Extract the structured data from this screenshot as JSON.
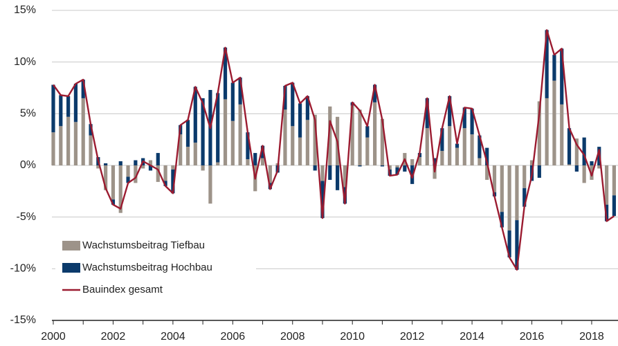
{
  "chart_data": {
    "type": "bar-line",
    "x": [
      2000,
      2000.25,
      2000.5,
      2000.75,
      2001,
      2001.25,
      2001.5,
      2001.75,
      2002,
      2002.25,
      2002.5,
      2002.75,
      2003,
      2003.25,
      2003.5,
      2003.75,
      2004,
      2004.25,
      2004.5,
      2004.75,
      2005,
      2005.25,
      2005.5,
      2005.75,
      2006,
      2006.25,
      2006.5,
      2006.75,
      2007,
      2007.25,
      2007.5,
      2007.75,
      2008,
      2008.25,
      2008.5,
      2008.75,
      2009,
      2009.25,
      2009.5,
      2009.75,
      2010,
      2010.25,
      2010.5,
      2010.75,
      2011,
      2011.25,
      2011.5,
      2011.75,
      2012,
      2012.25,
      2012.5,
      2012.75,
      2013,
      2013.25,
      2013.5,
      2013.75,
      2014,
      2014.25,
      2014.5,
      2014.75,
      2015,
      2015.25,
      2015.5,
      2015.75,
      2016,
      2016.25,
      2016.5,
      2016.75,
      2017,
      2017.25,
      2017.5,
      2017.75,
      2018,
      2018.25,
      2018.5,
      2018.75
    ],
    "series": [
      {
        "name": "Wachstumsbeitrag Tiefbau",
        "kind": "bar",
        "color": "#9d9389",
        "values": [
          3.2,
          3.8,
          4.7,
          4.2,
          6.5,
          2.9,
          -0.3,
          -2.4,
          -3.3,
          -4.6,
          -1.1,
          -1.7,
          -0.3,
          0.5,
          -1.6,
          -1.5,
          -0.4,
          3.0,
          1.8,
          2.2,
          -0.5,
          -3.7,
          0.3,
          6.4,
          4.3,
          5.9,
          0.6,
          -2.5,
          0.7,
          -1.7,
          0.2,
          5.4,
          3.8,
          2.7,
          4.4,
          4.9,
          -1.5,
          5.7,
          4.7,
          -2.1,
          5.8,
          5.4,
          2.7,
          6.1,
          4.5,
          -0.4,
          -0.2,
          1.2,
          0.6,
          0.8,
          3.6,
          -1.3,
          1.4,
          3.8,
          1.7,
          3.6,
          3.0,
          0.7,
          -1.4,
          -2.6,
          -4.5,
          -6.3,
          -5.3,
          -2.2,
          0.5,
          6.2,
          6.5,
          8.2,
          5.9,
          0.1,
          2.6,
          -1.7,
          -1.4,
          -0.3,
          -3.8,
          -2.9
        ]
      },
      {
        "name": "Wachstumsbeitrag Hochbau",
        "kind": "bar",
        "color": "#0b3a6b",
        "values": [
          4.6,
          3.0,
          2.0,
          3.7,
          1.8,
          1.1,
          0.8,
          0.2,
          -0.5,
          0.4,
          -0.6,
          0.5,
          0.7,
          -0.5,
          1.2,
          -0.5,
          -2.3,
          0.9,
          2.6,
          5.4,
          6.5,
          7.3,
          6.7,
          5.0,
          3.7,
          2.6,
          2.6,
          1.2,
          1.2,
          -0.6,
          -0.7,
          2.3,
          4.2,
          3.3,
          2.3,
          -0.5,
          -3.6,
          -1.4,
          -2.4,
          -1.6,
          0.3,
          -0.1,
          1.1,
          1.7,
          -0.1,
          -0.6,
          -0.7,
          -0.6,
          -1.8,
          0.4,
          2.9,
          0.7,
          2.2,
          2.9,
          0.4,
          2.0,
          2.5,
          2.2,
          1.7,
          -0.4,
          -1.5,
          -2.6,
          -4.8,
          -1.8,
          -1.5,
          -1.2,
          6.6,
          2.5,
          5.4,
          3.5,
          -0.6,
          2.7,
          0.4,
          1.8,
          -1.6,
          -2.0
        ]
      },
      {
        "name": "Bauindex gesamt",
        "kind": "line",
        "color": "#9b1b30",
        "values": [
          7.8,
          6.8,
          6.7,
          7.9,
          8.3,
          4.0,
          0.5,
          -2.2,
          -3.8,
          -4.2,
          -1.7,
          -1.2,
          0.4,
          0.0,
          -0.4,
          -2.0,
          -2.7,
          3.9,
          4.4,
          7.6,
          6.0,
          3.6,
          7.0,
          11.4,
          8.0,
          8.5,
          3.2,
          -1.3,
          1.9,
          -2.3,
          -0.5,
          7.7,
          8.0,
          6.0,
          6.7,
          4.4,
          -5.1,
          4.3,
          2.3,
          -3.7,
          6.1,
          5.3,
          3.8,
          7.8,
          4.4,
          -1.0,
          -0.9,
          0.6,
          -1.2,
          1.2,
          6.5,
          -0.6,
          3.6,
          6.7,
          2.1,
          5.6,
          5.5,
          2.9,
          0.3,
          -3.0,
          -6.0,
          -8.9,
          -10.1,
          -4.0,
          -1.0,
          5.0,
          13.1,
          10.7,
          11.3,
          3.6,
          2.0,
          1.0,
          -1.0,
          1.5,
          -5.4,
          -4.9
        ]
      }
    ],
    "xlim": [
      2000,
      2018.88
    ],
    "xticks": [
      2000,
      2002,
      2004,
      2006,
      2008,
      2010,
      2012,
      2014,
      2016,
      2018
    ],
    "xminor_ticks": [
      2001,
      2003,
      2005,
      2007,
      2009,
      2011,
      2013,
      2015,
      2017
    ],
    "ylim": [
      -15,
      15
    ],
    "yticks": [
      {
        "value": -15,
        "label": "-15%"
      },
      {
        "value": -10,
        "label": "-10%"
      },
      {
        "value": -5,
        "label": "-5%"
      },
      {
        "value": 0,
        "label": "0%"
      },
      {
        "value": 5,
        "label": "5%"
      },
      {
        "value": 10,
        "label": "10%"
      },
      {
        "value": 15,
        "label": "15%"
      }
    ],
    "grid": true,
    "legend": "bottom-left"
  }
}
